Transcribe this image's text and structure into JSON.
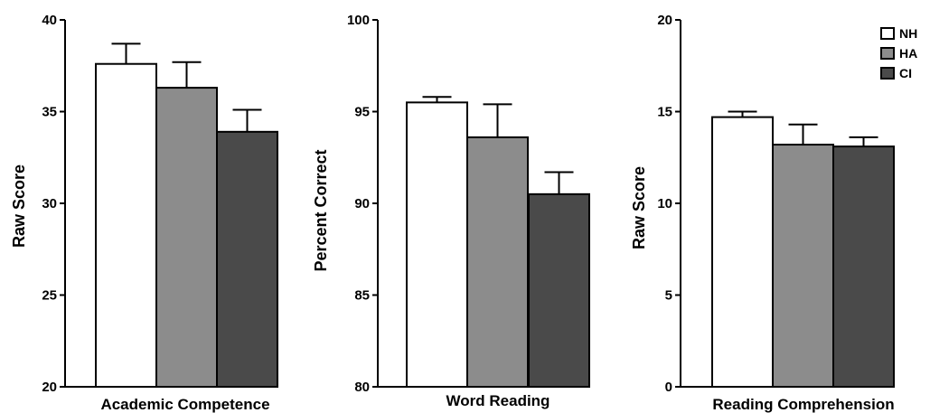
{
  "chart_data": [
    {
      "type": "bar",
      "categories": [
        "NH",
        "HA",
        "CI"
      ],
      "values": [
        37.6,
        36.3,
        33.9
      ],
      "errors": [
        1.1,
        1.4,
        1.2
      ],
      "xlabel": "Academic Competence",
      "ylabel": "Raw Score",
      "ylim": [
        20,
        40
      ],
      "yticks": [
        20,
        25,
        30,
        35,
        40
      ],
      "grid": false
    },
    {
      "type": "bar",
      "categories": [
        "NH",
        "HA",
        "CI"
      ],
      "values": [
        95.5,
        93.6,
        90.5
      ],
      "errors": [
        0.3,
        1.8,
        1.2
      ],
      "xlabel": "Word Reading",
      "ylabel": "Percent  Correct",
      "ylim": [
        80,
        100
      ],
      "yticks": [
        80,
        85,
        90,
        95,
        100
      ],
      "grid": false
    },
    {
      "type": "bar",
      "categories": [
        "NH",
        "HA",
        "CI"
      ],
      "values": [
        14.7,
        13.2,
        13.1
      ],
      "errors": [
        0.3,
        1.1,
        0.5
      ],
      "xlabel": "Reading Comprehension",
      "ylabel": "Raw Score",
      "ylim": [
        0,
        20
      ],
      "yticks": [
        0,
        5,
        10,
        15,
        20
      ],
      "grid": false
    }
  ],
  "legend": {
    "placement": "top-right",
    "entries": [
      "NH",
      "HA",
      "CI"
    ]
  },
  "colors": {
    "NH": "#ffffff",
    "HA": "#8c8c8c",
    "CI": "#4a4a4a",
    "stroke": "#000000"
  }
}
